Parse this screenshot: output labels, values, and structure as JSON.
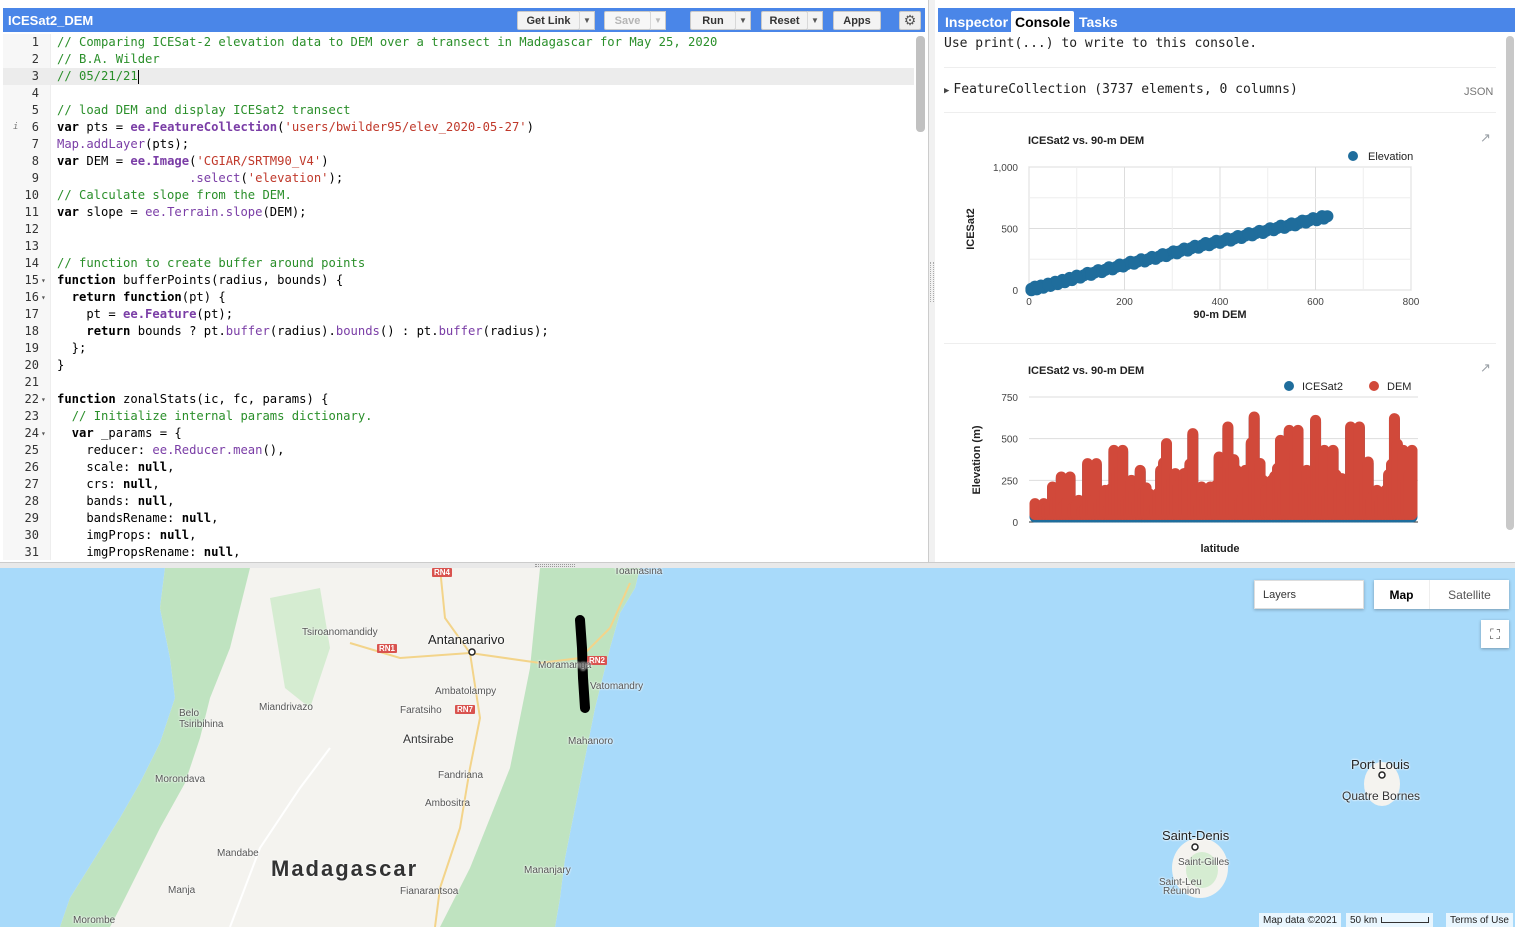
{
  "editor": {
    "title": "ICESat2_DEM",
    "buttons": {
      "get_link": "Get Link",
      "save": "Save",
      "run": "Run",
      "reset": "Reset",
      "apps": "Apps"
    },
    "active_line": 3,
    "lines": [
      {
        "n": "1",
        "fold": "",
        "info": "",
        "tokens": [
          {
            "t": "// Comparing ICESat-2 elevation data to DEM over a transect in Madagascar for May 25, 2020",
            "c": "com"
          }
        ]
      },
      {
        "n": "2",
        "fold": "",
        "info": "",
        "tokens": [
          {
            "t": "// B.A. Wilder",
            "c": "com"
          }
        ]
      },
      {
        "n": "3",
        "fold": "",
        "info": "",
        "tokens": [
          {
            "t": "// 05/21/21",
            "c": "com"
          }
        ]
      },
      {
        "n": "4",
        "fold": "",
        "info": "",
        "tokens": []
      },
      {
        "n": "5",
        "fold": "",
        "info": "",
        "tokens": [
          {
            "t": "// load DEM and display ICESat2 transect",
            "c": "com"
          }
        ]
      },
      {
        "n": "6",
        "fold": "",
        "info": "i",
        "tokens": [
          {
            "t": "var",
            "c": "kw"
          },
          {
            "t": " pts = ",
            "c": "plain"
          },
          {
            "t": "ee.FeatureCollection",
            "c": "bold-fn"
          },
          {
            "t": "(",
            "c": "plain"
          },
          {
            "t": "'users/bwilder95/elev_2020-05-27'",
            "c": "str"
          },
          {
            "t": ")",
            "c": "plain"
          }
        ]
      },
      {
        "n": "7",
        "fold": "",
        "info": "",
        "tokens": [
          {
            "t": "Map.addLayer",
            "c": "fn"
          },
          {
            "t": "(pts);",
            "c": "plain"
          }
        ]
      },
      {
        "n": "8",
        "fold": "",
        "info": "",
        "tokens": [
          {
            "t": "var",
            "c": "kw"
          },
          {
            "t": " DEM = ",
            "c": "plain"
          },
          {
            "t": "ee.Image",
            "c": "bold-fn"
          },
          {
            "t": "(",
            "c": "plain"
          },
          {
            "t": "'CGIAR/SRTM90_V4'",
            "c": "str"
          },
          {
            "t": ")",
            "c": "plain"
          }
        ]
      },
      {
        "n": "9",
        "fold": "",
        "info": "",
        "tokens": [
          {
            "t": "                  ",
            "c": "plain"
          },
          {
            "t": ".select",
            "c": "fn"
          },
          {
            "t": "(",
            "c": "plain"
          },
          {
            "t": "'elevation'",
            "c": "str"
          },
          {
            "t": ");",
            "c": "plain"
          }
        ]
      },
      {
        "n": "10",
        "fold": "",
        "info": "",
        "tokens": [
          {
            "t": "// Calculate slope from the DEM.",
            "c": "com"
          }
        ]
      },
      {
        "n": "11",
        "fold": "",
        "info": "",
        "tokens": [
          {
            "t": "var",
            "c": "kw"
          },
          {
            "t": " slope = ",
            "c": "plain"
          },
          {
            "t": "ee.Terrain.slope",
            "c": "fn"
          },
          {
            "t": "(DEM);",
            "c": "plain"
          }
        ]
      },
      {
        "n": "12",
        "fold": "",
        "info": "",
        "tokens": []
      },
      {
        "n": "13",
        "fold": "",
        "info": "",
        "tokens": []
      },
      {
        "n": "14",
        "fold": "",
        "info": "",
        "tokens": [
          {
            "t": "// function to create buffer around points",
            "c": "com"
          }
        ]
      },
      {
        "n": "15",
        "fold": "▾",
        "info": "",
        "tokens": [
          {
            "t": "function",
            "c": "kw"
          },
          {
            "t": " bufferPoints(radius, bounds) {",
            "c": "plain"
          }
        ]
      },
      {
        "n": "16",
        "fold": "▾",
        "info": "",
        "tokens": [
          {
            "t": "  ",
            "c": "plain"
          },
          {
            "t": "return function",
            "c": "kw"
          },
          {
            "t": "(pt) {",
            "c": "plain"
          }
        ]
      },
      {
        "n": "17",
        "fold": "",
        "info": "",
        "tokens": [
          {
            "t": "    pt = ",
            "c": "plain"
          },
          {
            "t": "ee.Feature",
            "c": "bold-fn"
          },
          {
            "t": "(pt);",
            "c": "plain"
          }
        ]
      },
      {
        "n": "18",
        "fold": "",
        "info": "",
        "tokens": [
          {
            "t": "    ",
            "c": "plain"
          },
          {
            "t": "return",
            "c": "kw"
          },
          {
            "t": " bounds ? pt.",
            "c": "plain"
          },
          {
            "t": "buffer",
            "c": "fn"
          },
          {
            "t": "(radius).",
            "c": "plain"
          },
          {
            "t": "bounds",
            "c": "fn"
          },
          {
            "t": "() : pt.",
            "c": "plain"
          },
          {
            "t": "buffer",
            "c": "fn"
          },
          {
            "t": "(radius);",
            "c": "plain"
          }
        ]
      },
      {
        "n": "19",
        "fold": "",
        "info": "",
        "tokens": [
          {
            "t": "  };",
            "c": "plain"
          }
        ]
      },
      {
        "n": "20",
        "fold": "",
        "info": "",
        "tokens": [
          {
            "t": "}",
            "c": "plain"
          }
        ]
      },
      {
        "n": "21",
        "fold": "",
        "info": "",
        "tokens": []
      },
      {
        "n": "22",
        "fold": "▾",
        "info": "",
        "tokens": [
          {
            "t": "function",
            "c": "kw"
          },
          {
            "t": " zonalStats(ic, fc, params) {",
            "c": "plain"
          }
        ]
      },
      {
        "n": "23",
        "fold": "",
        "info": "",
        "tokens": [
          {
            "t": "  ",
            "c": "plain"
          },
          {
            "t": "// Initialize internal params dictionary.",
            "c": "com"
          }
        ]
      },
      {
        "n": "24",
        "fold": "▾",
        "info": "",
        "tokens": [
          {
            "t": "  ",
            "c": "plain"
          },
          {
            "t": "var",
            "c": "kw"
          },
          {
            "t": " _params = {",
            "c": "plain"
          }
        ]
      },
      {
        "n": "25",
        "fold": "",
        "info": "",
        "tokens": [
          {
            "t": "    reducer: ",
            "c": "plain"
          },
          {
            "t": "ee.Reducer.mean",
            "c": "fn"
          },
          {
            "t": "(),",
            "c": "plain"
          }
        ]
      },
      {
        "n": "26",
        "fold": "",
        "info": "",
        "tokens": [
          {
            "t": "    scale: ",
            "c": "plain"
          },
          {
            "t": "null",
            "c": "kw"
          },
          {
            "t": ",",
            "c": "plain"
          }
        ]
      },
      {
        "n": "27",
        "fold": "",
        "info": "",
        "tokens": [
          {
            "t": "    crs: ",
            "c": "plain"
          },
          {
            "t": "null",
            "c": "kw"
          },
          {
            "t": ",",
            "c": "plain"
          }
        ]
      },
      {
        "n": "28",
        "fold": "",
        "info": "",
        "tokens": [
          {
            "t": "    bands: ",
            "c": "plain"
          },
          {
            "t": "null",
            "c": "kw"
          },
          {
            "t": ",",
            "c": "plain"
          }
        ]
      },
      {
        "n": "29",
        "fold": "",
        "info": "",
        "tokens": [
          {
            "t": "    bandsRename: ",
            "c": "plain"
          },
          {
            "t": "null",
            "c": "kw"
          },
          {
            "t": ",",
            "c": "plain"
          }
        ]
      },
      {
        "n": "30",
        "fold": "",
        "info": "",
        "tokens": [
          {
            "t": "    imgProps: ",
            "c": "plain"
          },
          {
            "t": "null",
            "c": "kw"
          },
          {
            "t": ",",
            "c": "plain"
          }
        ]
      },
      {
        "n": "31",
        "fold": "",
        "info": "",
        "tokens": [
          {
            "t": "    imgPropsRename: ",
            "c": "plain"
          },
          {
            "t": "null",
            "c": "kw"
          },
          {
            "t": ",",
            "c": "plain"
          }
        ]
      }
    ]
  },
  "console": {
    "tabs": [
      "Inspector",
      "Console",
      "Tasks"
    ],
    "active_tab": "Console",
    "hint": "Use print(...) to write to this console.",
    "feature_collection": "FeatureCollection (3737 elements, 0 columns)",
    "json_label": "JSON"
  },
  "chart_data": [
    {
      "type": "scatter",
      "title": "ICESat2 vs. 90-m DEM",
      "xlabel": "90-m DEM",
      "ylabel": "ICESat2",
      "xlim": [
        0,
        800
      ],
      "ylim": [
        0,
        1000
      ],
      "xticks": [
        "0",
        "200",
        "400",
        "600",
        "800"
      ],
      "yticks": [
        "0",
        "500",
        "1,000"
      ],
      "legend": "top-right",
      "series": [
        {
          "name": "Elevation",
          "color": "#1f6d9c",
          "x": [
            5,
            20,
            40,
            60,
            80,
            100,
            130,
            160,
            190,
            220,
            250,
            280,
            310,
            340,
            370,
            400,
            430,
            460,
            490,
            520,
            550,
            580,
            610,
            625
          ],
          "y": [
            10,
            20,
            40,
            60,
            80,
            105,
            135,
            165,
            195,
            225,
            250,
            280,
            310,
            340,
            370,
            395,
            420,
            450,
            475,
            505,
            530,
            560,
            585,
            600
          ]
        }
      ]
    },
    {
      "type": "scatter",
      "title": "ICESat2 vs. 90-m DEM",
      "xlabel": "latitude",
      "ylabel": "Elevation (m)",
      "ylim": [
        0,
        750
      ],
      "yticks": [
        "0",
        "250",
        "500",
        "750"
      ],
      "legend": "top-right",
      "series": [
        {
          "name": "ICESat2",
          "color": "#1f6d9c"
        },
        {
          "name": "DEM",
          "color": "#d1493a"
        }
      ],
      "profile": [
        100,
        200,
        260,
        120,
        340,
        180,
        420,
        240,
        300,
        160,
        460,
        280,
        520,
        200,
        380,
        560,
        300,
        620,
        240,
        480,
        540,
        300,
        600,
        420,
        250,
        560,
        350,
        180,
        610,
        420
      ]
    }
  ],
  "map": {
    "layers_label": "Layers",
    "map_btn": "Map",
    "satellite_btn": "Satellite",
    "country": "Madagascar",
    "labels": {
      "toamasina": "Toamasina",
      "tsiroanomandidy": "Tsiroanomandidy",
      "antananarivo": "Antananarivo",
      "moramanga": "Moramanga",
      "vatomandry": "Vatomandry",
      "ambatolampy": "Ambatolampy",
      "faratsiho": "Faratsiho",
      "miandrivazo": "Miandrivazo",
      "belo": "Belo\nTsiribihina",
      "antsirabe": "Antsirabe",
      "mahanoro": "Mahanoro",
      "morondava": "Morondava",
      "fandriana": "Fandriana",
      "ambositra": "Ambositra",
      "mandabe": "Mandabe",
      "manja": "Manja",
      "morombe": "Morombe",
      "fianarantsoa": "Fianarantsoa",
      "mananjary": "Mananjary",
      "port_louis": "Port Louis",
      "quatre_bornes": "Quatre Bornes",
      "saint_denis": "Saint-Denis",
      "saint_gilles": "Saint-Gilles",
      "saint_leu": "Saint-Leu",
      "reunion": "Réunion"
    },
    "roads": {
      "rn4": "RN4",
      "rn1": "RN1",
      "rn2": "RN2",
      "rn7": "RN7"
    },
    "attribution": "Map data ©2021",
    "scale_label": "50 km",
    "terms": "Terms of Use"
  }
}
